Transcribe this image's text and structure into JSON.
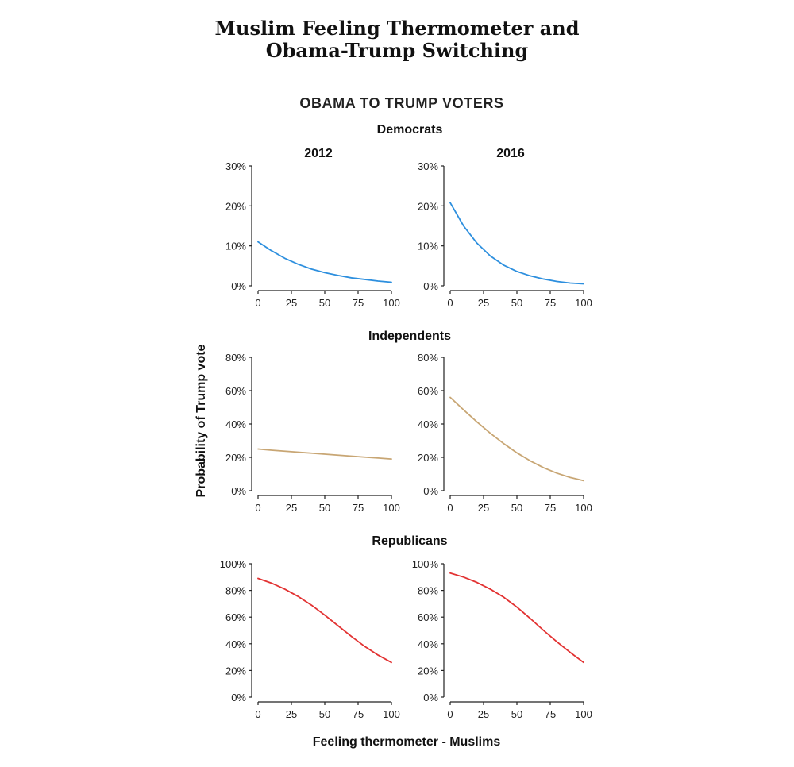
{
  "title_lines": [
    "Muslim Feeling Thermometer and",
    "Obama-Trump Switching"
  ],
  "section_title": "OBAMA TO TRUMP VOTERS",
  "y_axis_label": "Probability of Trump vote",
  "x_axis_label": "Feeling thermometer - Muslims",
  "column_titles": [
    "2012",
    "2016"
  ],
  "colors": {
    "Democrats": "#2d8fde",
    "Independents": "#c8a674",
    "Republicans": "#e23232",
    "axis": "#222222"
  },
  "chart_data": [
    {
      "type": "line",
      "group": "Democrats",
      "year": "2012",
      "x": [
        0,
        10,
        20,
        30,
        40,
        50,
        60,
        70,
        80,
        90,
        100
      ],
      "y": [
        11.0,
        8.8,
        6.9,
        5.4,
        4.2,
        3.3,
        2.6,
        2.0,
        1.6,
        1.2,
        0.9
      ],
      "ylim": [
        0,
        30
      ],
      "yticks": [
        0,
        10,
        20,
        30
      ],
      "ytick_labels": [
        "0%",
        "10%",
        "20%",
        "30%"
      ],
      "xticks": [
        0,
        25,
        50,
        75,
        100
      ],
      "xtick_labels": [
        "0",
        "25",
        "50",
        "75",
        "100"
      ]
    },
    {
      "type": "line",
      "group": "Democrats",
      "year": "2016",
      "x": [
        0,
        10,
        20,
        30,
        40,
        50,
        60,
        70,
        80,
        90,
        100
      ],
      "y": [
        20.8,
        15.0,
        10.7,
        7.5,
        5.2,
        3.6,
        2.5,
        1.7,
        1.1,
        0.7,
        0.5
      ],
      "ylim": [
        0,
        30
      ],
      "yticks": [
        0,
        10,
        20,
        30
      ],
      "ytick_labels": [
        "0%",
        "10%",
        "20%",
        "30%"
      ],
      "xticks": [
        0,
        25,
        50,
        75,
        100
      ],
      "xtick_labels": [
        "0",
        "25",
        "50",
        "75",
        "100"
      ]
    },
    {
      "type": "line",
      "group": "Independents",
      "year": "2012",
      "x": [
        0,
        10,
        20,
        30,
        40,
        50,
        60,
        70,
        80,
        90,
        100
      ],
      "y": [
        25.0,
        24.3,
        23.7,
        23.1,
        22.5,
        21.9,
        21.3,
        20.7,
        20.1,
        19.6,
        19.0
      ],
      "ylim": [
        0,
        80
      ],
      "yticks": [
        0,
        20,
        40,
        60,
        80
      ],
      "ytick_labels": [
        "0%",
        "20%",
        "40%",
        "60%",
        "80%"
      ],
      "xticks": [
        0,
        25,
        50,
        75,
        100
      ],
      "xtick_labels": [
        "0",
        "25",
        "50",
        "75",
        "100"
      ]
    },
    {
      "type": "line",
      "group": "Independents",
      "year": "2016",
      "x": [
        0,
        10,
        20,
        30,
        40,
        50,
        60,
        70,
        80,
        90,
        100
      ],
      "y": [
        56.0,
        48.5,
        41.3,
        34.5,
        28.3,
        22.7,
        17.9,
        13.8,
        10.5,
        7.9,
        6.0
      ],
      "ylim": [
        0,
        80
      ],
      "yticks": [
        0,
        20,
        40,
        60,
        80
      ],
      "ytick_labels": [
        "0%",
        "20%",
        "40%",
        "60%",
        "80%"
      ],
      "xticks": [
        0,
        25,
        50,
        75,
        100
      ],
      "xtick_labels": [
        "0",
        "25",
        "50",
        "75",
        "100"
      ]
    },
    {
      "type": "line",
      "group": "Republicans",
      "year": "2012",
      "x": [
        0,
        10,
        20,
        30,
        40,
        50,
        60,
        70,
        80,
        90,
        100
      ],
      "y": [
        89.0,
        85.5,
        81.0,
        75.5,
        69.0,
        61.5,
        53.5,
        45.5,
        38.0,
        31.5,
        26.0
      ],
      "ylim": [
        0,
        100
      ],
      "yticks": [
        0,
        20,
        40,
        60,
        80,
        100
      ],
      "ytick_labels": [
        "0%",
        "20%",
        "40%",
        "60%",
        "80%",
        "100%"
      ],
      "xticks": [
        0,
        25,
        50,
        75,
        100
      ],
      "xtick_labels": [
        "0",
        "25",
        "50",
        "75",
        "100"
      ]
    },
    {
      "type": "line",
      "group": "Republicans",
      "year": "2016",
      "x": [
        0,
        10,
        20,
        30,
        40,
        50,
        60,
        70,
        80,
        90,
        100
      ],
      "y": [
        93.0,
        90.0,
        86.0,
        81.0,
        75.0,
        67.5,
        59.0,
        50.0,
        41.5,
        33.5,
        26.0
      ],
      "ylim": [
        0,
        100
      ],
      "yticks": [
        0,
        20,
        40,
        60,
        80,
        100
      ],
      "ytick_labels": [
        "0%",
        "20%",
        "40%",
        "60%",
        "80%",
        "100%"
      ],
      "xticks": [
        0,
        25,
        50,
        75,
        100
      ],
      "xtick_labels": [
        "0",
        "25",
        "50",
        "75",
        "100"
      ]
    }
  ]
}
